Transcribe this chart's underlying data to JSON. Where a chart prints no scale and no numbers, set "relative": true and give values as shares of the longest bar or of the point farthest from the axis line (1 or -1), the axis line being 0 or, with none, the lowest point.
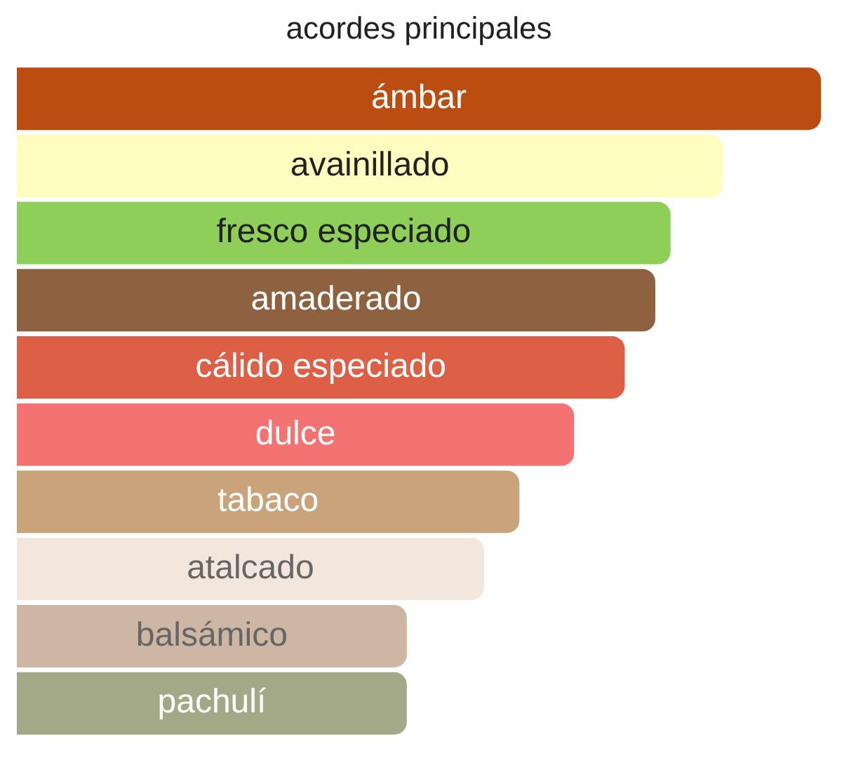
{
  "chart_data": {
    "type": "bar",
    "orientation": "horizontal",
    "relative": true,
    "title": "acordes principales",
    "categories": [
      "ámbar",
      "avainillado",
      "fresco especiado",
      "amaderado",
      "cálido especiado",
      "dulce",
      "tabaco",
      "atalcado",
      "balsámico",
      "pachulí"
    ],
    "values": [
      1,
      0.878,
      0.813,
      0.794,
      0.756,
      0.693,
      0.625,
      0.581,
      0.485,
      0.485
    ],
    "colors": [
      "#bc4d10",
      "#fffcc0",
      "#8dcf58",
      "#8e6240",
      "#dc5f46",
      "#f47272",
      "#c9a37a",
      "#f3e6dc",
      "#cdb6a3",
      "#a3a887"
    ],
    "legend": false
  }
}
